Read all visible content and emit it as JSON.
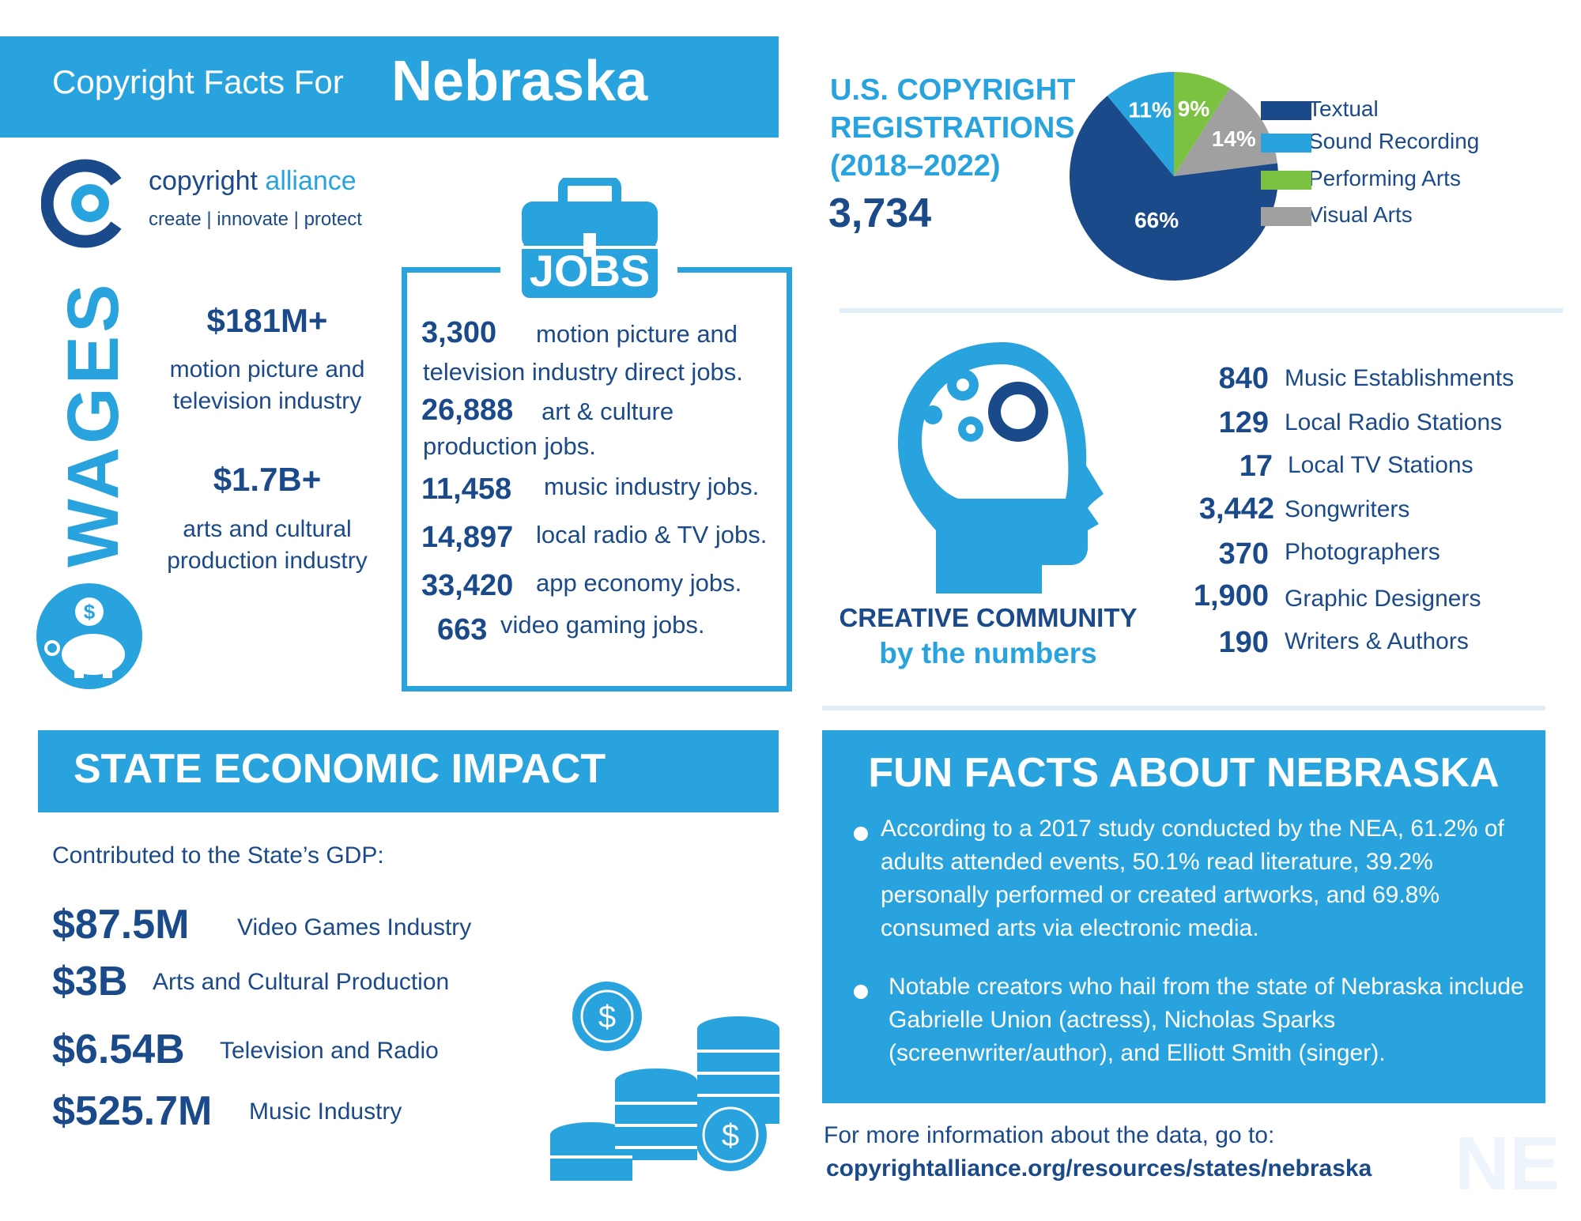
{
  "header": {
    "prefix": "Copyright Facts For",
    "state": "Nebraska"
  },
  "logo": {
    "name_part1": "copyright ",
    "name_part2": "alliance",
    "tagline": "create | innovate | protect"
  },
  "wages": {
    "heading": "WAGES",
    "items": [
      {
        "amount": "$181M+",
        "desc_line1": "motion picture and",
        "desc_line2": "television industry"
      },
      {
        "amount": "$1.7B+",
        "desc_line1": "arts and cultural",
        "desc_line2": "production industry"
      }
    ]
  },
  "jobs": {
    "heading": "JOBS",
    "items": [
      {
        "num": "3,300",
        "desc1": "motion picture and",
        "desc2": "television industry direct jobs."
      },
      {
        "num": "26,888",
        "desc1": "art & culture",
        "desc2": "production jobs."
      },
      {
        "num": "11,458",
        "desc1": "music industry jobs."
      },
      {
        "num": "14,897",
        "desc1": "local radio & TV jobs."
      },
      {
        "num": "33,420",
        "desc1": "app economy jobs."
      },
      {
        "num": "663",
        "desc1": "video gaming jobs."
      }
    ]
  },
  "registrations": {
    "title_line1": "U.S. COPYRIGHT",
    "title_line2": "REGISTRATIONS",
    "title_line3": "(2018–2022)",
    "total": "3,734"
  },
  "chart_data": {
    "type": "pie",
    "categories": [
      "Textual",
      "Sound Recording",
      "Performing Arts",
      "Visual Arts"
    ],
    "values": [
      66,
      11,
      9,
      14
    ],
    "labels": [
      "66%",
      "11%",
      "9%",
      "14%"
    ],
    "colors": [
      "#1b4a8a",
      "#29a3dd",
      "#7cc242",
      "#a0a0a0"
    ],
    "legend": "right"
  },
  "creative": {
    "title": "CREATIVE COMMUNITY",
    "subtitle": "by the numbers",
    "items": [
      {
        "num": "840",
        "label": "Music Establishments"
      },
      {
        "num": "129",
        "label": "Local Radio Stations"
      },
      {
        "num": "17",
        "label": "Local TV Stations"
      },
      {
        "num": "3,442",
        "label": "Songwriters"
      },
      {
        "num": "370",
        "label": "Photographers"
      },
      {
        "num": "1,900",
        "label": "Graphic Designers"
      },
      {
        "num": "190",
        "label": "Writers & Authors"
      }
    ]
  },
  "economic": {
    "title": "STATE ECONOMIC IMPACT",
    "subtitle": "Contributed to the State’s GDP:",
    "items": [
      {
        "amount": "$87.5M",
        "label": "Video Games Industry"
      },
      {
        "amount": "$3B",
        "label": "Arts and Cultural Production"
      },
      {
        "amount": "$6.54B",
        "label": "Television and Radio"
      },
      {
        "amount": "$525.7M",
        "label": "Music Industry"
      }
    ]
  },
  "fun_facts": {
    "title": "FUN FACTS ABOUT NEBRASKA",
    "fact1": "According to a 2017 study conducted by the NEA, 61.2% of adults attended events, 50.1% read literature, 39.2% personally performed or created artworks, and 69.8% consumed arts via electronic media.",
    "fact2": "Notable creators who hail from the state of Nebraska include Gabrielle Union (actress), Nicholas Sparks (screenwriter/author), and Elliott Smith (singer)."
  },
  "footer": {
    "more_info": "For more information about the data, go to:",
    "url": "copyrightalliance.org/resources/states/nebraska",
    "state_abbr": "NE"
  },
  "icons": [
    "copyright-alliance-logo-icon",
    "piggy-bank-icon",
    "toolbox-icon",
    "head-gears-icon",
    "coin-stacks-icon"
  ]
}
